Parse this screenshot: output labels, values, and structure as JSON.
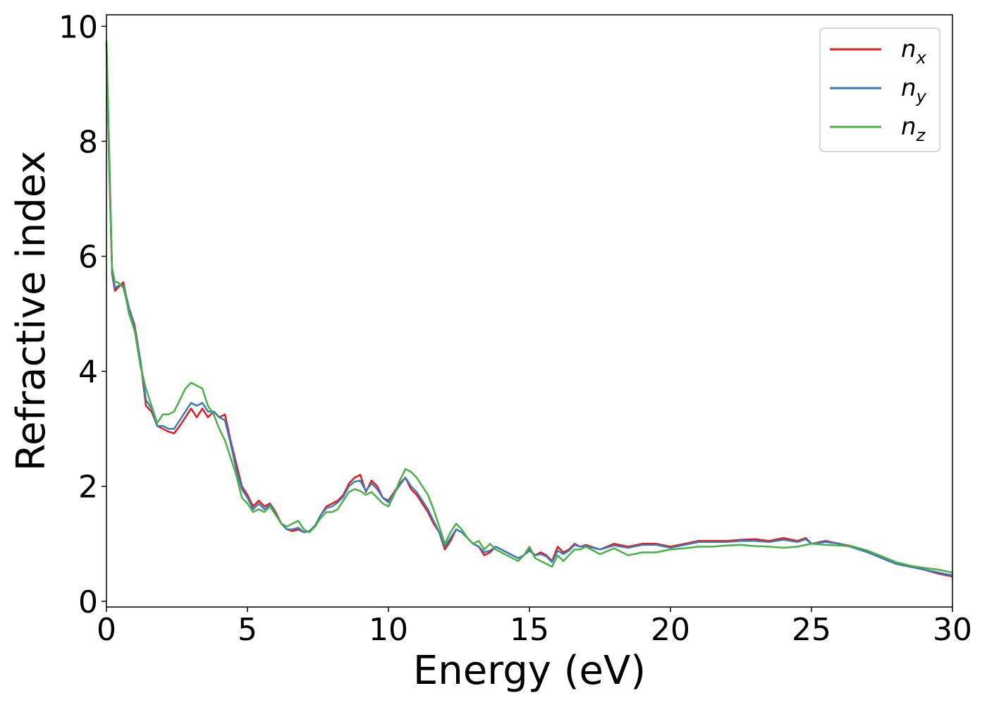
{
  "chart_data": {
    "type": "line",
    "xlabel": "Energy (eV)",
    "ylabel": "Refractive index",
    "xlim": [
      0,
      30
    ],
    "ylim": [
      -0.1,
      10.2
    ],
    "xticks": [
      0,
      5,
      10,
      15,
      20,
      25,
      30
    ],
    "yticks": [
      0,
      2,
      4,
      6,
      8,
      10
    ],
    "grid": false,
    "legend": "top-right",
    "colors": {
      "nx": "#e41a1c",
      "ny": "#377eb8",
      "nz": "#4daf4a"
    },
    "series": [
      {
        "name": "n_x",
        "color": "#e41a1c",
        "x": [
          0,
          0.1,
          0.2,
          0.3,
          0.4,
          0.5,
          0.6,
          0.7,
          0.8,
          1.0,
          1.2,
          1.4,
          1.6,
          1.8,
          2.0,
          2.2,
          2.4,
          2.6,
          2.8,
          3.0,
          3.2,
          3.4,
          3.6,
          3.8,
          4.0,
          4.2,
          4.4,
          4.6,
          4.8,
          5.0,
          5.2,
          5.4,
          5.6,
          5.8,
          6.0,
          6.2,
          6.4,
          6.6,
          6.8,
          7.0,
          7.2,
          7.4,
          7.6,
          7.8,
          8.0,
          8.2,
          8.4,
          8.6,
          8.8,
          9.0,
          9.2,
          9.4,
          9.6,
          9.8,
          10.0,
          10.2,
          10.4,
          10.6,
          10.8,
          11.0,
          11.2,
          11.4,
          11.6,
          11.8,
          12.0,
          12.2,
          12.4,
          12.6,
          12.8,
          13.0,
          13.2,
          13.4,
          13.6,
          13.8,
          14.0,
          14.2,
          14.4,
          14.6,
          14.8,
          15.0,
          15.2,
          15.4,
          15.6,
          15.8,
          16.0,
          16.2,
          16.4,
          16.6,
          16.8,
          17.0,
          17.5,
          18.0,
          18.5,
          19.0,
          19.5,
          20.0,
          20.5,
          21.0,
          21.5,
          22.0,
          22.5,
          23.0,
          23.5,
          24.0,
          24.5,
          24.8,
          25.0,
          25.5,
          26.0,
          26.5,
          27.0,
          27.5,
          28.0,
          28.5,
          29.0,
          29.5,
          30.0
        ],
        "y": [
          9.7,
          7.5,
          5.7,
          5.4,
          5.45,
          5.5,
          5.55,
          5.3,
          5.1,
          4.8,
          4.2,
          3.4,
          3.3,
          3.05,
          3.0,
          2.95,
          2.92,
          3.05,
          3.2,
          3.35,
          3.2,
          3.35,
          3.2,
          3.3,
          3.2,
          3.25,
          2.8,
          2.4,
          2.0,
          1.85,
          1.65,
          1.75,
          1.65,
          1.7,
          1.55,
          1.35,
          1.25,
          1.22,
          1.25,
          1.2,
          1.22,
          1.3,
          1.5,
          1.65,
          1.7,
          1.75,
          1.85,
          2.05,
          2.15,
          2.2,
          1.9,
          2.1,
          2.0,
          1.8,
          1.75,
          1.9,
          2.05,
          2.15,
          1.95,
          1.85,
          1.7,
          1.55,
          1.35,
          1.2,
          0.9,
          1.05,
          1.25,
          1.2,
          1.1,
          1.0,
          0.95,
          0.8,
          0.85,
          0.95,
          0.9,
          0.85,
          0.8,
          0.75,
          0.8,
          0.9,
          0.8,
          0.85,
          0.8,
          0.7,
          0.95,
          0.85,
          0.9,
          1.0,
          0.95,
          0.98,
          0.9,
          1.0,
          0.95,
          1.0,
          1.0,
          0.95,
          1.0,
          1.05,
          1.05,
          1.05,
          1.07,
          1.08,
          1.05,
          1.1,
          1.05,
          1.1,
          1.0,
          1.05,
          1.0,
          0.95,
          0.85,
          0.75,
          0.65,
          0.6,
          0.55,
          0.48,
          0.43
        ]
      },
      {
        "name": "n_y",
        "color": "#377eb8",
        "x": [
          0,
          0.1,
          0.2,
          0.3,
          0.4,
          0.5,
          0.6,
          0.7,
          0.8,
          1.0,
          1.2,
          1.4,
          1.6,
          1.8,
          2.0,
          2.2,
          2.4,
          2.6,
          2.8,
          3.0,
          3.2,
          3.4,
          3.6,
          3.8,
          4.0,
          4.2,
          4.4,
          4.6,
          4.8,
          5.0,
          5.2,
          5.4,
          5.6,
          5.8,
          6.0,
          6.2,
          6.4,
          6.6,
          6.8,
          7.0,
          7.2,
          7.4,
          7.6,
          7.8,
          8.0,
          8.2,
          8.4,
          8.6,
          8.8,
          9.0,
          9.2,
          9.4,
          9.6,
          9.8,
          10.0,
          10.2,
          10.4,
          10.6,
          10.8,
          11.0,
          11.2,
          11.4,
          11.6,
          11.8,
          12.0,
          12.2,
          12.4,
          12.6,
          12.8,
          13.0,
          13.2,
          13.4,
          13.6,
          13.8,
          14.0,
          14.2,
          14.4,
          14.6,
          14.8,
          15.0,
          15.2,
          15.4,
          15.6,
          15.8,
          16.0,
          16.2,
          16.4,
          16.6,
          16.8,
          17.0,
          17.5,
          18.0,
          18.5,
          19.0,
          19.5,
          20.0,
          20.5,
          21.0,
          21.5,
          22.0,
          22.5,
          23.0,
          23.5,
          24.0,
          24.5,
          24.8,
          25.0,
          25.5,
          26.0,
          26.5,
          27.0,
          27.5,
          28.0,
          28.5,
          29.0,
          29.5,
          30.0
        ],
        "y": [
          9.7,
          7.6,
          5.75,
          5.45,
          5.48,
          5.5,
          5.5,
          5.3,
          5.1,
          4.75,
          4.2,
          3.5,
          3.35,
          3.05,
          3.05,
          3.0,
          3.0,
          3.15,
          3.3,
          3.45,
          3.4,
          3.45,
          3.3,
          3.3,
          3.2,
          3.15,
          2.75,
          2.3,
          1.95,
          1.8,
          1.6,
          1.7,
          1.6,
          1.68,
          1.52,
          1.35,
          1.25,
          1.25,
          1.28,
          1.2,
          1.22,
          1.32,
          1.5,
          1.62,
          1.65,
          1.72,
          1.82,
          2.0,
          2.08,
          2.1,
          1.92,
          2.05,
          1.95,
          1.8,
          1.72,
          1.88,
          2.02,
          2.15,
          2.0,
          1.9,
          1.75,
          1.6,
          1.4,
          1.2,
          0.95,
          1.1,
          1.25,
          1.2,
          1.1,
          1.0,
          0.95,
          0.85,
          0.88,
          0.95,
          0.9,
          0.85,
          0.8,
          0.75,
          0.8,
          0.88,
          0.8,
          0.82,
          0.78,
          0.68,
          0.88,
          0.82,
          0.88,
          0.98,
          0.95,
          0.96,
          0.9,
          0.97,
          0.93,
          0.98,
          0.98,
          0.93,
          0.98,
          1.03,
          1.03,
          1.03,
          1.05,
          1.05,
          1.03,
          1.07,
          1.03,
          1.08,
          1.0,
          1.03,
          1.0,
          0.93,
          0.85,
          0.75,
          0.65,
          0.6,
          0.55,
          0.5,
          0.45
        ]
      },
      {
        "name": "n_z",
        "color": "#4daf4a",
        "x": [
          0,
          0.1,
          0.2,
          0.3,
          0.4,
          0.5,
          0.6,
          0.7,
          0.8,
          1.0,
          1.2,
          1.4,
          1.6,
          1.8,
          2.0,
          2.2,
          2.4,
          2.6,
          2.8,
          3.0,
          3.2,
          3.4,
          3.6,
          3.8,
          4.0,
          4.2,
          4.4,
          4.6,
          4.8,
          5.0,
          5.2,
          5.4,
          5.6,
          5.8,
          6.0,
          6.2,
          6.4,
          6.6,
          6.8,
          7.0,
          7.2,
          7.4,
          7.6,
          7.8,
          8.0,
          8.2,
          8.4,
          8.6,
          8.8,
          9.0,
          9.2,
          9.4,
          9.6,
          9.8,
          10.0,
          10.2,
          10.4,
          10.6,
          10.8,
          11.0,
          11.2,
          11.4,
          11.6,
          11.8,
          12.0,
          12.2,
          12.4,
          12.6,
          12.8,
          13.0,
          13.2,
          13.4,
          13.6,
          13.8,
          14.0,
          14.2,
          14.4,
          14.6,
          14.8,
          15.0,
          15.2,
          15.4,
          15.6,
          15.8,
          16.0,
          16.2,
          16.4,
          16.6,
          16.8,
          17.0,
          17.5,
          18.0,
          18.5,
          19.0,
          19.5,
          20.0,
          20.5,
          21.0,
          21.5,
          22.0,
          22.5,
          23.0,
          23.5,
          24.0,
          24.5,
          24.8,
          25.0,
          25.5,
          26.0,
          26.5,
          27.0,
          27.5,
          28.0,
          28.5,
          29.0,
          29.5,
          30.0
        ],
        "y": [
          9.75,
          7.8,
          5.8,
          5.55,
          5.55,
          5.5,
          5.45,
          5.25,
          5.0,
          4.7,
          4.1,
          3.7,
          3.4,
          3.1,
          3.25,
          3.25,
          3.3,
          3.5,
          3.7,
          3.8,
          3.75,
          3.7,
          3.4,
          3.25,
          3.0,
          2.8,
          2.5,
          2.2,
          1.8,
          1.7,
          1.55,
          1.6,
          1.55,
          1.65,
          1.5,
          1.35,
          1.3,
          1.35,
          1.4,
          1.25,
          1.2,
          1.3,
          1.45,
          1.55,
          1.55,
          1.6,
          1.75,
          1.9,
          1.95,
          1.92,
          1.85,
          1.9,
          1.8,
          1.7,
          1.65,
          1.85,
          2.1,
          2.3,
          2.25,
          2.15,
          2.0,
          1.85,
          1.6,
          1.3,
          1.0,
          1.2,
          1.35,
          1.25,
          1.1,
          1.0,
          1.05,
          0.9,
          1.0,
          0.9,
          0.85,
          0.8,
          0.75,
          0.7,
          0.8,
          0.95,
          0.75,
          0.7,
          0.65,
          0.6,
          0.8,
          0.7,
          0.8,
          0.9,
          0.9,
          0.95,
          0.82,
          0.92,
          0.8,
          0.85,
          0.85,
          0.9,
          0.92,
          0.95,
          0.95,
          0.97,
          0.98,
          0.96,
          0.95,
          0.93,
          0.95,
          0.98,
          1.0,
          0.98,
          0.97,
          0.95,
          0.88,
          0.78,
          0.68,
          0.62,
          0.58,
          0.55,
          0.5
        ]
      }
    ],
    "legend_entries": [
      {
        "base": "n",
        "sub": "x",
        "color": "#e41a1c"
      },
      {
        "base": "n",
        "sub": "y",
        "color": "#377eb8"
      },
      {
        "base": "n",
        "sub": "z",
        "color": "#4daf4a"
      }
    ]
  }
}
